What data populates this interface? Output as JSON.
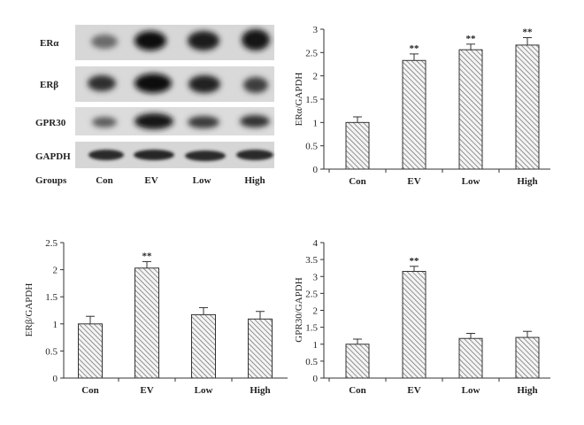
{
  "blot": {
    "rows": [
      "ERα",
      "ERβ",
      "GPR30",
      "GAPDH"
    ],
    "groups_label": "Groups",
    "lanes": [
      "Con",
      "EV",
      "Low",
      "High"
    ]
  },
  "chart_data": [
    {
      "type": "bar",
      "categories": [
        "Con",
        "EV",
        "Low",
        "High"
      ],
      "values": [
        1.0,
        2.33,
        2.56,
        2.66
      ],
      "errors": [
        0.12,
        0.14,
        0.12,
        0.16
      ],
      "significance": [
        "",
        "**",
        "**",
        "**"
      ],
      "ylabel": "ERα/GAPDH",
      "ylim": [
        0,
        3
      ],
      "yticks": [
        0,
        0.5,
        1,
        1.5,
        2,
        2.5,
        3
      ],
      "ytick_labels": [
        "0",
        "0.5",
        "1",
        "1.5",
        "2",
        "2.5",
        "3"
      ],
      "grid": false
    },
    {
      "type": "bar",
      "categories": [
        "Con",
        "EV",
        "Low",
        "High"
      ],
      "values": [
        1.0,
        2.03,
        1.17,
        1.09
      ],
      "errors": [
        0.14,
        0.12,
        0.13,
        0.14
      ],
      "significance": [
        "",
        "**",
        "",
        ""
      ],
      "ylabel": "ERβ/GAPDH",
      "ylim": [
        0,
        2.5
      ],
      "yticks": [
        0,
        0.5,
        1,
        1.5,
        2,
        2.5
      ],
      "ytick_labels": [
        "0",
        "0.5",
        "1",
        "1.5",
        "2",
        "2.5"
      ],
      "grid": false
    },
    {
      "type": "bar",
      "categories": [
        "Con",
        "EV",
        "Low",
        "High"
      ],
      "values": [
        1.0,
        3.15,
        1.17,
        1.2
      ],
      "errors": [
        0.15,
        0.15,
        0.15,
        0.18
      ],
      "significance": [
        "",
        "**",
        "",
        ""
      ],
      "ylabel": "GPR30/GAPDH",
      "ylim": [
        0,
        4
      ],
      "yticks": [
        0,
        0.5,
        1,
        1.5,
        2,
        2.5,
        3,
        3.5,
        4
      ],
      "ytick_labels": [
        "0",
        "0.5",
        "1",
        "1.5",
        "2",
        "2.5",
        "3",
        "3.5",
        "4"
      ],
      "grid": false
    }
  ]
}
